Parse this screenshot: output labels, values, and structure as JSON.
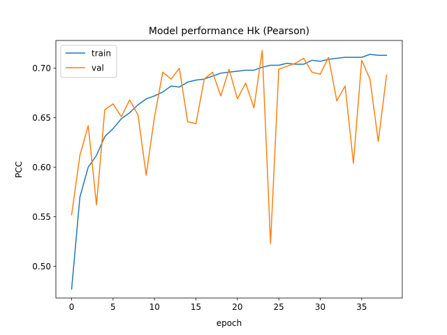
{
  "chart_data": {
    "type": "line",
    "title": "Model performance Hk (Pearson)",
    "xlabel": "epoch",
    "ylabel": "PCC",
    "xlim": [
      -1.9,
      39.9
    ],
    "ylim": [
      0.468,
      0.728
    ],
    "xticks": [
      0,
      5,
      10,
      15,
      20,
      25,
      30,
      35
    ],
    "yticks": [
      0.5,
      0.55,
      0.6,
      0.65,
      0.7
    ],
    "ytick_labels": [
      "0.50",
      "0.55",
      "0.60",
      "0.65",
      "0.70"
    ],
    "grid": false,
    "legend_position": "upper-left",
    "x": [
      0,
      1,
      2,
      3,
      4,
      5,
      6,
      7,
      8,
      9,
      10,
      11,
      12,
      13,
      14,
      15,
      16,
      17,
      18,
      19,
      20,
      21,
      22,
      23,
      24,
      25,
      26,
      27,
      28,
      29,
      30,
      31,
      32,
      33,
      34,
      35,
      36,
      37,
      38
    ],
    "series": [
      {
        "name": "train",
        "color": "#1f77b4",
        "values": [
          0.477,
          0.57,
          0.6,
          0.612,
          0.631,
          0.639,
          0.649,
          0.655,
          0.663,
          0.669,
          0.672,
          0.676,
          0.682,
          0.681,
          0.686,
          0.688,
          0.689,
          0.692,
          0.695,
          0.696,
          0.697,
          0.698,
          0.698,
          0.701,
          0.703,
          0.703,
          0.705,
          0.704,
          0.704,
          0.708,
          0.707,
          0.709,
          0.71,
          0.711,
          0.711,
          0.711,
          0.714,
          0.713,
          0.713
        ]
      },
      {
        "name": "val",
        "color": "#ff7f0e",
        "values": [
          0.552,
          0.612,
          0.642,
          0.562,
          0.658,
          0.664,
          0.651,
          0.668,
          0.653,
          0.592,
          0.651,
          0.696,
          0.689,
          0.7,
          0.646,
          0.644,
          0.689,
          0.696,
          0.672,
          0.699,
          0.669,
          0.685,
          0.66,
          0.718,
          0.523,
          0.699,
          0.702,
          0.705,
          0.71,
          0.696,
          0.694,
          0.711,
          0.667,
          0.682,
          0.604,
          0.708,
          0.689,
          0.626,
          0.693
        ]
      }
    ]
  }
}
